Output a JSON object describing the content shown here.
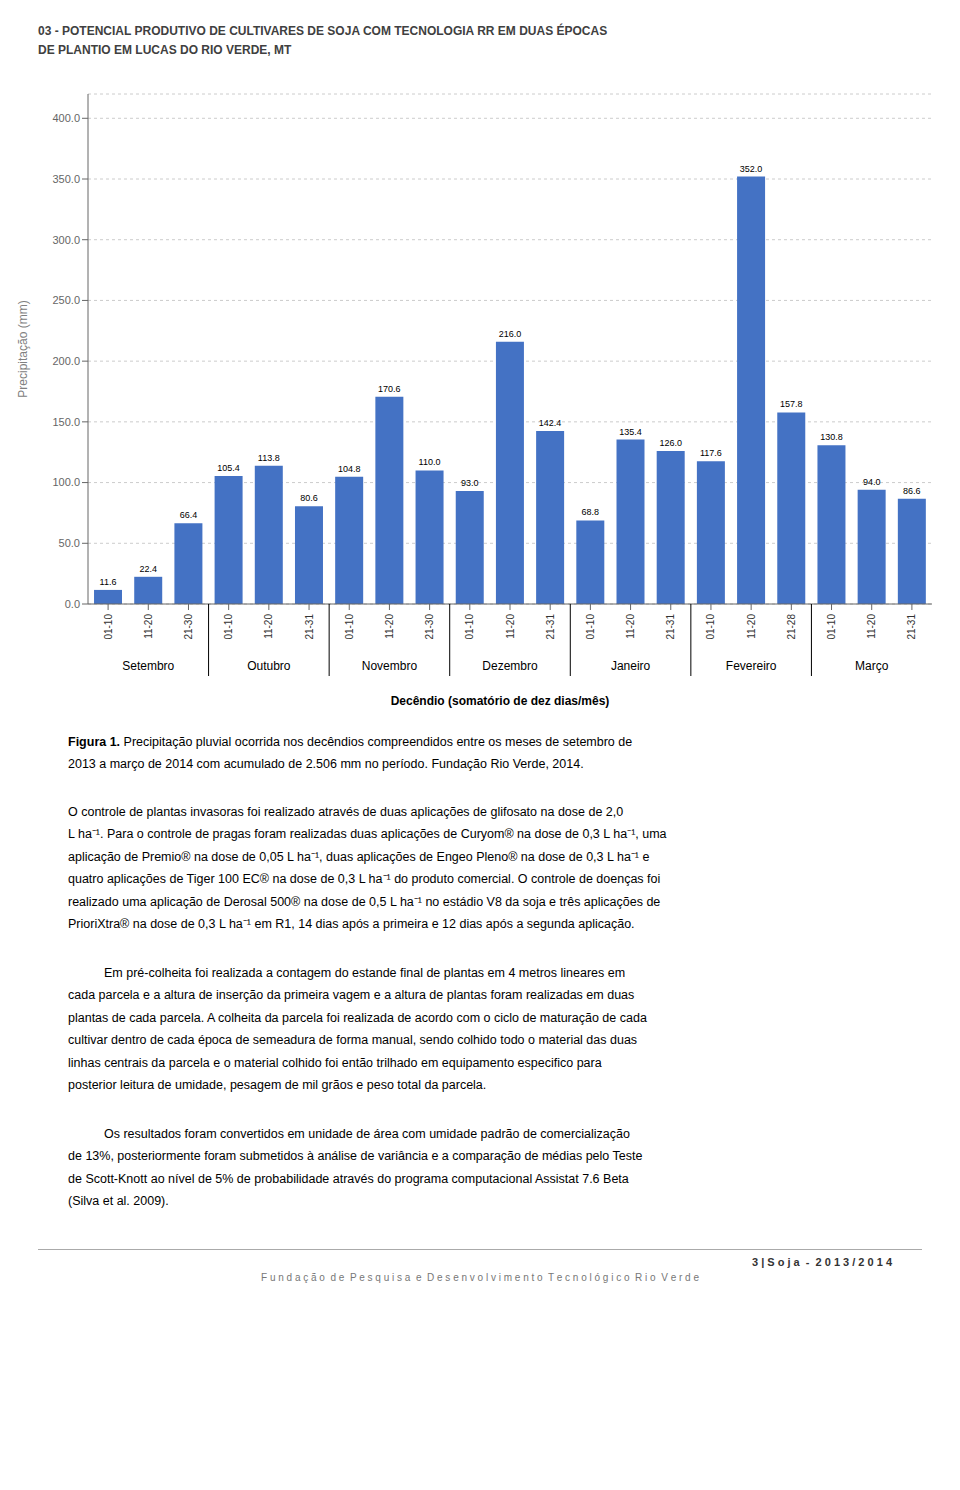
{
  "chart_data": {
    "type": "bar",
    "title": "03 - POTENCIAL PRODUTIVO DE CULTIVARES DE SOJA COM TECNOLOGIA RR EM DUAS ÉPOCAS\nDE PLANTIO EM LUCAS DO RIO VERDE, MT",
    "categories": [
      "01-10",
      "11-20",
      "21-30",
      "01-10",
      "11-20",
      "21-31",
      "01-10",
      "11-20",
      "21-30",
      "01-10",
      "11-20",
      "21-31",
      "01-10",
      "11-20",
      "21-31",
      "01-10",
      "11-20",
      "21-28",
      "01-10",
      "11-20",
      "21-31"
    ],
    "values": [
      11.6,
      22.4,
      66.4,
      105.4,
      113.8,
      80.6,
      104.8,
      170.6,
      110.0,
      93.0,
      216.0,
      142.4,
      68.8,
      135.4,
      126.0,
      117.6,
      352.0,
      157.8,
      130.8,
      94.0,
      86.6
    ],
    "value_labels": [
      "11.6",
      "22.4",
      "66.4",
      "105.4",
      "113.8",
      "80.6",
      "104.8",
      "170.6",
      "110.0",
      "93.0",
      "216.0",
      "142.4",
      "68.8",
      "135.4",
      "126.0",
      "117.6",
      "352.0",
      "157.8",
      "130.8",
      "94.0",
      "86.6"
    ],
    "data_labels": true,
    "color": "#4472C4",
    "ylabel": "Precipitação (mm)",
    "xlabel": "Decêndio (somatório de dez dias/mês)",
    "ylim": [
      0,
      420
    ],
    "yticks": [
      {
        "value": 0,
        "label": "0.0"
      },
      {
        "value": 50,
        "label": "50.0"
      },
      {
        "value": 100,
        "label": "100.0"
      },
      {
        "value": 150,
        "label": "150.0"
      },
      {
        "value": 200,
        "label": "200.0"
      },
      {
        "value": 250,
        "label": "250.0"
      },
      {
        "value": 300,
        "label": "300.0"
      },
      {
        "value": 350,
        "label": "350.0"
      },
      {
        "value": 400,
        "label": "400.0"
      }
    ],
    "grid": true,
    "category_groups": [
      {
        "label": "Setembro",
        "span": [
          0,
          3
        ]
      },
      {
        "label": "Outubro",
        "span": [
          3,
          6
        ]
      },
      {
        "label": "Novembro",
        "span": [
          6,
          9
        ]
      },
      {
        "label": "Dezembro",
        "span": [
          9,
          12
        ]
      },
      {
        "label": "Janeiro",
        "span": [
          12,
          15
        ]
      },
      {
        "label": "Fevereiro",
        "span": [
          15,
          18
        ]
      },
      {
        "label": "Março",
        "span": [
          18,
          21
        ]
      }
    ]
  },
  "caption": {
    "bold": "Figura 1.",
    "text": " Precipitação pluvial ocorrida nos decêndios compreendidos entre os meses de setembro de\n2013 a março de 2014 com acumulado de 2.506 mm no período. Fundação Rio Verde, 2014."
  },
  "paragraphs": [
    "O controle de plantas invasoras foi realizado através de duas aplicações de glifosato na dose de 2,0\nL ha⁻¹. Para o controle de pragas foram realizadas duas aplicações de Curyom® na dose de 0,3 L ha⁻¹, uma\naplicação de Premio® na dose de 0,05 L ha⁻¹, duas aplicações de Engeo Pleno® na dose de 0,3 L ha⁻¹ e\nquatro aplicações de Tiger 100 EC® na dose de 0,3 L ha⁻¹ do produto comercial. O controle de doenças foi\nrealizado uma aplicação de Derosal 500® na dose de 0,5 L ha⁻¹ no estádio V8 da soja e três aplicações de\nPrioriXtra® na dose de 0,3 L ha⁻¹ em R1, 14 dias após a primeira e 12 dias após a segunda aplicação.",
    "Em pré-colheita foi realizada a contagem do estande final de plantas em 4 metros lineares em\ncada parcela e a altura de inserção da primeira vagem e a altura de plantas foram realizadas em duas\nplantas de cada parcela. A colheita da parcela foi realizada de acordo com o ciclo de maturação de cada\ncultivar dentro de cada época de semeadura de forma manual, sendo colhido todo o material das duas\nlinhas centrais da parcela e o material colhido foi então trilhado em equipamento especifico para\nposterior leitura de umidade, pesagem de mil grãos e peso total da parcela.",
    "Os resultados foram convertidos em unidade de área com umidade padrão de comercialização\nde 13%, posteriormente foram submetidos à análise de variância e a comparação de médias pelo Teste\nde Scott-Knott ao nível de 5% de probabilidade através do programa computacional Assistat 7.6 Beta\n(Silva et al. 2009)."
  ],
  "footer_right": "3 | S o j a  -  2 0 1 3 / 2 0 1 4",
  "footer_center": "F u n d a ç ã o  d e  P e s q u i s a  e  D e s e n v o l v i m e n t o  T e c n o l ó g i c o  R i o  V e r d e"
}
